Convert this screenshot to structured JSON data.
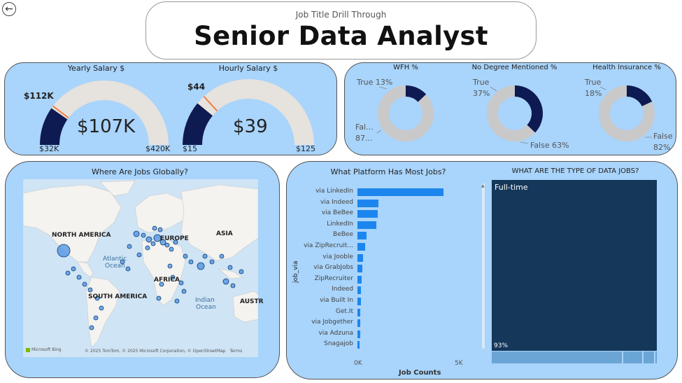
{
  "header": {
    "subtitle": "Job Title Drill Through",
    "title": "Senior Data Analyst"
  },
  "gauges": [
    {
      "title": "Yearly Salary $",
      "value_label": "$107K",
      "target_label": "$112K",
      "min_label": "$32K",
      "max_label": "$420K",
      "value": 107,
      "target": 112,
      "min": 32,
      "max": 420
    },
    {
      "title": "Hourly Salary $",
      "value_label": "$39",
      "target_label": "$44",
      "min_label": "$15",
      "max_label": "$125",
      "value": 39,
      "target": 44,
      "min": 15,
      "max": 125
    }
  ],
  "donuts": [
    {
      "title": "WFH %",
      "true_label": "True 13%",
      "false_label_1": "Fal...",
      "false_label_2": "87...",
      "true_pct": 13
    },
    {
      "title": "No Degree Mentioned %",
      "true_label_1": "True",
      "true_label_2": "37%",
      "false_label": "False 63%",
      "true_pct": 37
    },
    {
      "title": "Health Insurance %",
      "true_label_1": "True",
      "true_label_2": "18%",
      "false_label_1": "False",
      "false_label_2": "82%",
      "true_pct": 18
    }
  ],
  "map": {
    "title": "Where Are Jobs Globally?",
    "labels": {
      "north_america": "NORTH AMERICA",
      "europe": "EUROPE",
      "asia": "ASIA",
      "atlantic_1": "Atlantic",
      "atlantic_2": "Ocean",
      "africa": "AFRICA",
      "south_america": "SOUTH AMERICA",
      "indian_1": "Indian",
      "indian_2": "Ocean",
      "australia": "AUSTR"
    },
    "brand": "Microsoft Bing",
    "attribution": "© 2025 TomTom, © 2025 Microsoft Corporation, © OpenStreetMap",
    "terms": "Terms"
  },
  "platforms": {
    "title": "What Platform Has Most Jobs?",
    "ylabel": "job_via",
    "xlabel": "Job Counts",
    "x_ticks": [
      "0K",
      "5K"
    ],
    "categories": [
      "via LinkedIn",
      "via Indeed",
      "via BeBee",
      "LinkedIn",
      "BeBee",
      "via ZipRecruit...",
      "via Jooble",
      "via GrabJobs",
      "ZipRecruiter",
      "Indeed",
      "via Built In",
      "Get.It",
      "via Jobgether",
      "via Adzuna",
      "Snagajob"
    ],
    "values": [
      4300,
      1050,
      1000,
      950,
      450,
      380,
      270,
      230,
      210,
      190,
      170,
      150,
      140,
      130,
      110
    ],
    "xlim": [
      0,
      5000
    ]
  },
  "job_types": {
    "title": "WHAT ARE THE TYPE OF DATA JOBS?",
    "main_label": "Full-time",
    "main_pct_label": "93%",
    "main_pct": 93
  },
  "colors": {
    "panel": "#a9d4fb",
    "navy": "#0e1a52",
    "gauge_track": "#e6e2dd",
    "target": "#f07c3c",
    "donut_track": "#c9c9c9",
    "bar": "#1c86ee",
    "treemap": "#14375a"
  }
}
